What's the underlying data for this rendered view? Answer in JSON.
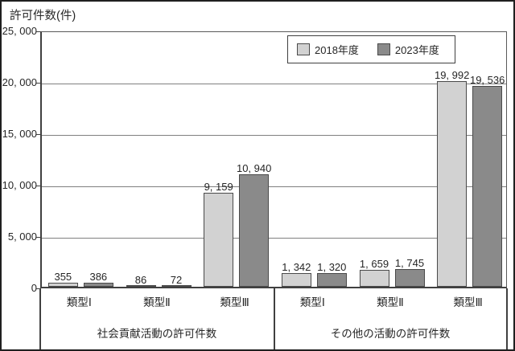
{
  "title": "許可件数(件)",
  "legend": {
    "items": [
      {
        "label": "2018年度",
        "color": "#d2d2d2"
      },
      {
        "label": "2023年度",
        "color": "#8a8a8a"
      }
    ]
  },
  "chart_data": {
    "type": "bar",
    "title": "",
    "ylabel": "許可件数(件)",
    "xlabel": "",
    "ylim": [
      0,
      25000
    ],
    "ytick_interval": 5000,
    "yticks": [
      "25, 000",
      "20, 000",
      "15, 000",
      "10, 000",
      "5, 000",
      "0"
    ],
    "grid": true,
    "legend_position": "top-inside",
    "groups": [
      {
        "label": "社会貢献活動の許可件数",
        "categories": [
          "類型Ⅰ",
          "類型Ⅱ",
          "類型Ⅲ"
        ]
      },
      {
        "label": "その他の活動の許可件数",
        "categories": [
          "類型Ⅰ",
          "類型Ⅱ",
          "類型Ⅲ"
        ]
      }
    ],
    "series": [
      {
        "name": "2018年度",
        "color": "#d2d2d2",
        "values": [
          355,
          86,
          9159,
          1342,
          1659,
          19992
        ],
        "labels": [
          "355",
          "86",
          "9, 159",
          "1, 342",
          "1, 659",
          "19, 992"
        ]
      },
      {
        "name": "2023年度",
        "color": "#8a8a8a",
        "values": [
          386,
          72,
          10940,
          1320,
          1745,
          19536
        ],
        "labels": [
          "386",
          "72",
          "10, 940",
          "1, 320",
          "1, 745",
          "19, 536"
        ]
      }
    ]
  }
}
